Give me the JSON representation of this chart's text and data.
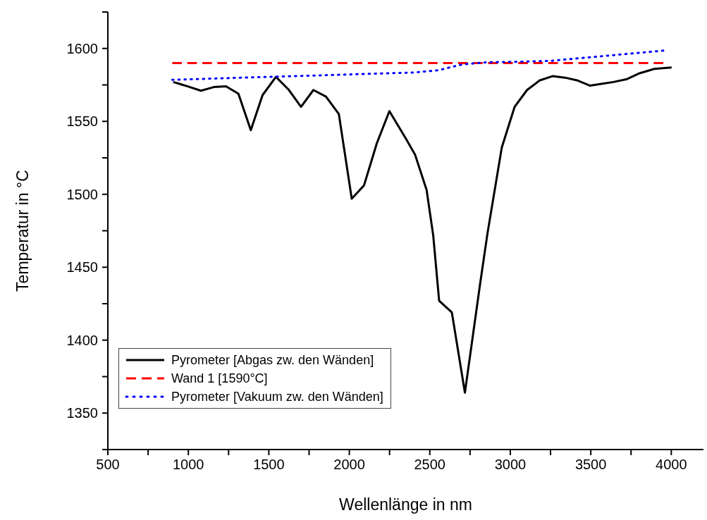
{
  "chart_data": {
    "type": "line",
    "xlabel": "Wellenlänge in nm",
    "ylabel": "Temperatur in °C",
    "xlim": [
      500,
      4200
    ],
    "ylim": [
      1325,
      1625
    ],
    "xticks": [
      500,
      {
        "value": 750,
        "label": null
      },
      1000,
      {
        "value": 1250,
        "label": null
      },
      1500,
      {
        "value": 1750,
        "label": null
      },
      2000,
      {
        "value": 2250,
        "label": null
      },
      2500,
      {
        "value": 2750,
        "label": null
      },
      3000,
      {
        "value": 3250,
        "label": null
      },
      3500,
      {
        "value": 3750,
        "label": null
      },
      4000
    ],
    "yticks": [
      {
        "value": 1325,
        "label": null
      },
      1350,
      {
        "value": 1375,
        "label": null
      },
      1400,
      {
        "value": 1425,
        "label": null
      },
      1450,
      {
        "value": 1475,
        "label": null
      },
      1500,
      {
        "value": 1525,
        "label": null
      },
      1550,
      {
        "value": 1575,
        "label": null
      },
      1600,
      {
        "value": 1625,
        "label": null
      }
    ],
    "grid": false,
    "legend": "bottom left",
    "marker": "none",
    "series": [
      {
        "name": "Pyrometer [Abgas zw. den Wänden]",
        "color": "#000000",
        "line_style": "solid",
        "x": [
          906,
          997,
          1078,
          1158,
          1234,
          1311,
          1388,
          1461,
          1544,
          1621,
          1700,
          1777,
          1855,
          1935,
          2015,
          2091,
          2171,
          2249,
          2352,
          2409,
          2480,
          2521,
          2558,
          2637,
          2718,
          2813,
          2858,
          2947,
          3027,
          3104,
          3181,
          3262,
          3339,
          3419,
          3496,
          3580,
          3641,
          3726,
          3803,
          3895,
          4002
        ],
        "values": [
          1577,
          1574,
          1571,
          1573.5,
          1574,
          1569,
          1544,
          1568,
          1580.5,
          1572,
          1560,
          1571.5,
          1567,
          1555,
          1497,
          1506,
          1535,
          1557,
          1538,
          1527,
          1503,
          1472,
          1427,
          1419,
          1364,
          1439,
          1473,
          1532,
          1560,
          1571.5,
          1578,
          1581,
          1580,
          1578,
          1574.5,
          1576,
          1577,
          1579,
          1583,
          1586,
          1587
        ]
      },
      {
        "name": "Wand 1 [1590°C]",
        "color": "#ff0000",
        "line_style": "dashed",
        "x": [
          900,
          3950
        ],
        "values": [
          1590,
          1590
        ]
      },
      {
        "name": "Pyrometer [Vakuum zw. den Wänden]",
        "color": "#0000ff",
        "line_style": "dotted",
        "x": [
          900,
          1200,
          1500,
          1800,
          2100,
          2400,
          2550,
          2700,
          2850,
          3100,
          3250,
          3450,
          3650,
          3950
        ],
        "values": [
          1578.5,
          1579.5,
          1580.5,
          1581.5,
          1582.5,
          1583.5,
          1585,
          1589,
          1590.5,
          1591,
          1591.5,
          1593.5,
          1595.5,
          1598.5
        ]
      }
    ]
  }
}
